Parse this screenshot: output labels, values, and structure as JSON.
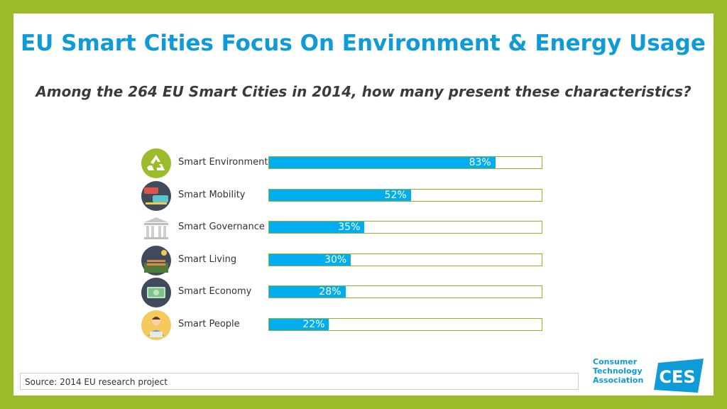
{
  "title": "EU Smart Cities Focus On Environment & Energy Usage",
  "subtitle": "Among the 264 EU Smart Cities in 2014, how many present these characteristics?",
  "source": "Source: 2014 EU research project",
  "logo": {
    "lines": [
      "Consumer",
      "Technology",
      "Association"
    ],
    "mark": "CES"
  },
  "colors": {
    "frame": "#9bbb2a",
    "title": "#0e9bd8",
    "bar": "#00aeef",
    "bar_border": "#92b528"
  },
  "chart_data": {
    "type": "bar",
    "orientation": "horizontal",
    "categories": [
      "Smart Environment",
      "Smart Mobility",
      "Smart Governance",
      "Smart Living",
      "Smart Economy",
      "Smart People"
    ],
    "values": [
      83,
      52,
      35,
      30,
      28,
      22
    ],
    "labels": [
      "83%",
      "52%",
      "35%",
      "30%",
      "28%",
      "22%"
    ],
    "icons": [
      "recycle-icon",
      "traffic-icon",
      "government-building-icon",
      "park-bench-icon",
      "money-icon",
      "person-laptop-icon"
    ],
    "xlim": [
      0,
      100
    ]
  }
}
